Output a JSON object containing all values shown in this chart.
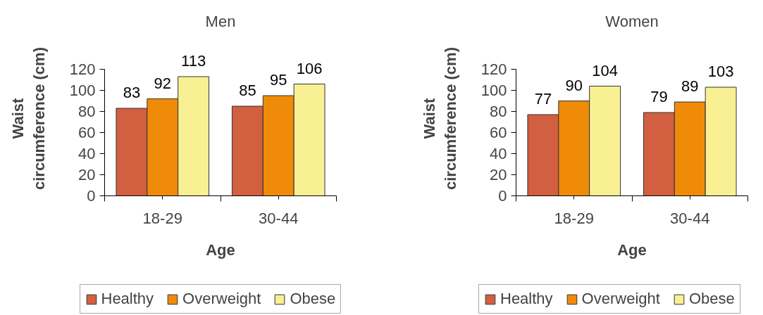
{
  "chart_data": [
    {
      "type": "bar",
      "title": "Men",
      "xlabel": "Age",
      "ylabel": "Waist circumference (cm)",
      "categories": [
        "18-29",
        "30-44"
      ],
      "series": [
        {
          "name": "Healthy",
          "color": "#d15f40",
          "values": [
            83,
            85
          ]
        },
        {
          "name": "Overweight",
          "color": "#ef8b08",
          "values": [
            92,
            95
          ]
        },
        {
          "name": "Obese",
          "color": "#f9f094",
          "values": [
            113,
            106
          ]
        }
      ],
      "ylim": [
        0,
        120
      ],
      "yticks": [
        0,
        20,
        40,
        60,
        80,
        100,
        120
      ],
      "data_labels": true,
      "grid": false,
      "legend": "bottom"
    },
    {
      "type": "bar",
      "title": "Women",
      "xlabel": "Age",
      "ylabel": "Waist circumference (cm)",
      "categories": [
        "18-29",
        "30-44"
      ],
      "series": [
        {
          "name": "Healthy",
          "color": "#d15f40",
          "values": [
            77,
            79
          ]
        },
        {
          "name": "Overweight",
          "color": "#ef8b08",
          "values": [
            90,
            89
          ]
        },
        {
          "name": "Obese",
          "color": "#f9f094",
          "values": [
            104,
            103
          ]
        }
      ],
      "ylim": [
        0,
        120
      ],
      "yticks": [
        0,
        20,
        40,
        60,
        80,
        100,
        120
      ],
      "data_labels": true,
      "grid": false,
      "legend": "bottom"
    }
  ]
}
